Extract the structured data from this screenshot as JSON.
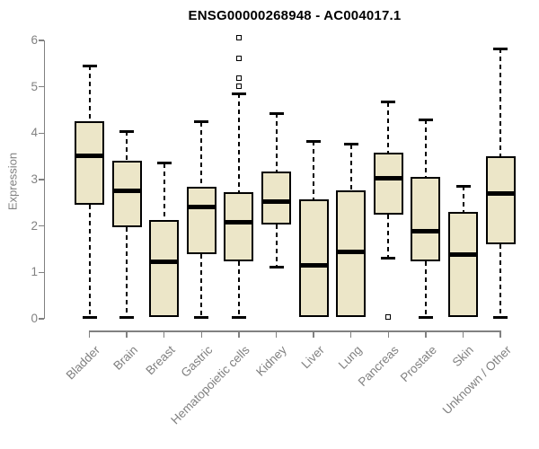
{
  "chart_data": {
    "type": "boxplot",
    "title": "ENSG00000268948 - AC004017.1",
    "xlabel": "",
    "ylabel": "Expression",
    "ylim": [
      0,
      6
    ],
    "y_ticks": [
      "0",
      "1",
      "2",
      "3",
      "4",
      "5",
      "6"
    ],
    "grid": false,
    "legend": "none",
    "categories": [
      "Bladder",
      "Brain",
      "Breast",
      "Gastric",
      "Hematopoietic cells",
      "Kidney",
      "Liver",
      "Lung",
      "Pancreas",
      "Prostate",
      "Skin",
      "Unknown / Other"
    ],
    "boxes": [
      {
        "category": "Bladder",
        "whisker_low": 0.03,
        "q1": 2.45,
        "median": 3.52,
        "q3": 4.25,
        "whisker_high": 5.45,
        "outliers": []
      },
      {
        "category": "Brain",
        "whisker_low": 0.03,
        "q1": 1.97,
        "median": 2.75,
        "q3": 3.4,
        "whisker_high": 4.04,
        "outliers": []
      },
      {
        "category": "Breast",
        "whisker_low": 0.03,
        "q1": 0.03,
        "median": 1.23,
        "q3": 2.12,
        "whisker_high": 3.35,
        "outliers": []
      },
      {
        "category": "Gastric",
        "whisker_low": 0.03,
        "q1": 1.4,
        "median": 2.4,
        "q3": 2.85,
        "whisker_high": 4.24,
        "outliers": []
      },
      {
        "category": "Hematopoietic cells",
        "whisker_low": 0.03,
        "q1": 1.23,
        "median": 2.08,
        "q3": 2.72,
        "whisker_high": 4.85,
        "outliers": [
          5.02,
          5.19,
          5.61,
          6.05
        ]
      },
      {
        "category": "Kidney",
        "whisker_low": 1.12,
        "q1": 2.03,
        "median": 2.52,
        "q3": 3.17,
        "whisker_high": 4.43,
        "outliers": []
      },
      {
        "category": "Liver",
        "whisker_low": 0.03,
        "q1": 0.03,
        "median": 1.15,
        "q3": 2.58,
        "whisker_high": 3.83,
        "outliers": []
      },
      {
        "category": "Lung",
        "whisker_low": 0.03,
        "q1": 0.03,
        "median": 1.45,
        "q3": 2.77,
        "whisker_high": 3.76,
        "outliers": []
      },
      {
        "category": "Pancreas",
        "whisker_low": 1.31,
        "q1": 2.24,
        "median": 3.03,
        "q3": 3.58,
        "whisker_high": 4.67,
        "outliers": [
          0.03
        ]
      },
      {
        "category": "Prostate",
        "whisker_low": 0.03,
        "q1": 1.23,
        "median": 1.88,
        "q3": 3.06,
        "whisker_high": 4.29,
        "outliers": []
      },
      {
        "category": "Skin",
        "whisker_low": 0.03,
        "q1": 0.03,
        "median": 1.39,
        "q3": 2.3,
        "whisker_high": 2.86,
        "outliers": []
      },
      {
        "category": "Unknown / Other",
        "whisker_low": 0.03,
        "q1": 1.61,
        "median": 2.7,
        "q3": 3.5,
        "whisker_high": 5.82,
        "outliers": []
      }
    ],
    "colors": {
      "box_fill": "#ece6c8",
      "box_border": "#000000",
      "median_line": "#000000",
      "whisker": "#000000",
      "axis": "#818181",
      "tick_label": "#818181",
      "title_text": "#000000",
      "background": "#ffffff"
    }
  }
}
